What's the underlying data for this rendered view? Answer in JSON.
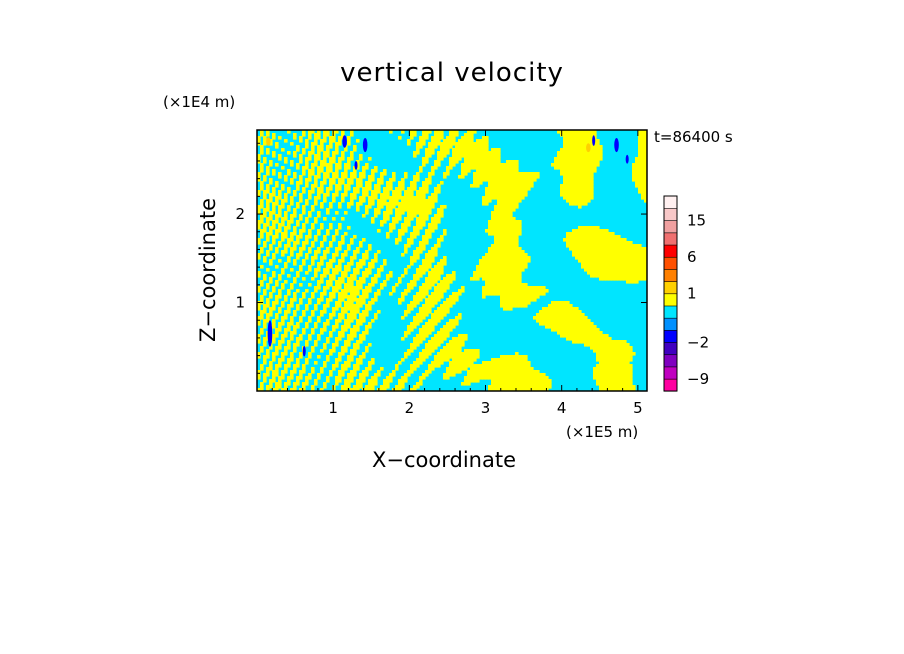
{
  "chart_data": {
    "type": "heatmap",
    "title": "vertical velocity",
    "xlabel": "X−coordinate",
    "ylabel": "Z−coordinate",
    "x_unit": "(×1E5 m)",
    "y_unit": "(×1E4 m)",
    "time_label": "t=86400 s",
    "xlim": [
      0,
      5.12
    ],
    "ylim": [
      0,
      2.95
    ],
    "x_ticks": [
      1,
      2,
      3,
      4,
      5
    ],
    "y_ticks": [
      1,
      2
    ],
    "x_tick_labels": [
      "1",
      "2",
      "3",
      "4",
      "5"
    ],
    "y_tick_labels": [
      "1",
      "2"
    ],
    "colorbar": {
      "levels": [
        -12,
        -9,
        -6,
        -4,
        -2,
        -1,
        0,
        0.5,
        1,
        2,
        4,
        6,
        9,
        12,
        15,
        18,
        22
      ],
      "colors": [
        "#ff00a0",
        "#c000c0",
        "#8000c0",
        "#4000c0",
        "#0000ff",
        "#0090ff",
        "#00e5ff",
        "#ffff00",
        "#ffd000",
        "#ff8000",
        "#ff5000",
        "#ff0000",
        "#f07070",
        "#f0a0a0",
        "#f8c8c8",
        "#fff0f0"
      ],
      "tick_values": [
        15,
        6,
        1,
        -2,
        -9
      ],
      "tick_labels": [
        "15",
        "6",
        "1",
        "−2",
        "−9"
      ]
    },
    "field_colors": {
      "updraft": "#ffff00",
      "downdraft": "#00e5ff",
      "strong_downdraft": "#0000ff",
      "strong_updraft": "#ffd000"
    }
  }
}
